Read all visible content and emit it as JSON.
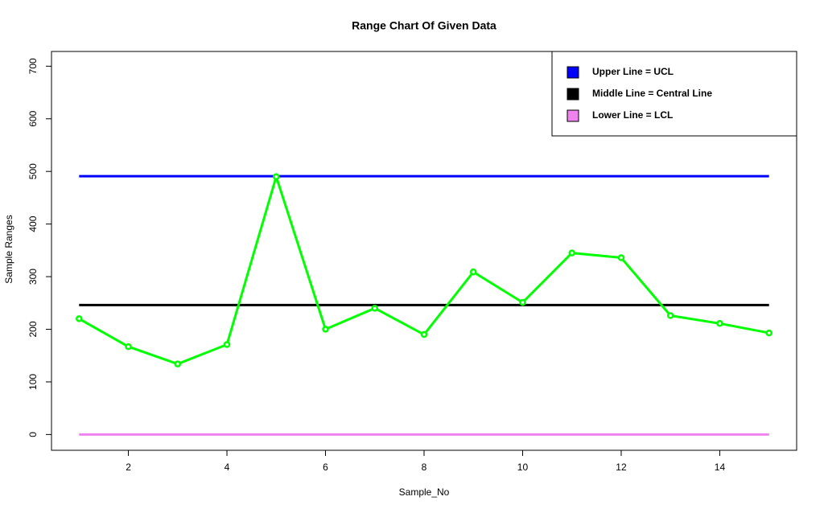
{
  "chart_data": {
    "type": "line",
    "title": "Range Chart Of Given Data",
    "x_label": "Sample_No",
    "y_label": "Sample Ranges",
    "x": [
      1,
      2,
      3,
      4,
      5,
      6,
      7,
      8,
      9,
      10,
      11,
      12,
      13,
      14,
      15
    ],
    "series": [
      {
        "color": "#00ff00",
        "values": [
          220,
          167,
          134,
          171,
          490,
          200,
          240,
          190,
          309,
          251,
          345,
          336,
          226,
          211,
          193
        ]
      }
    ],
    "reference_lines": [
      {
        "name": "Upper Line = UCL",
        "color": "#0000ff",
        "value": 491
      },
      {
        "name": "Middle Line = Central Line",
        "color": "#000000",
        "value": 246
      },
      {
        "name": "Lower Line = LCL",
        "color": "#ee82ee",
        "value": 0
      }
    ],
    "xlim": [
      0.44,
      15.56
    ],
    "xticks": [
      2,
      4,
      6,
      8,
      10,
      12,
      14
    ],
    "ylim": [
      -30,
      728
    ],
    "yticks": [
      0,
      100,
      200,
      300,
      400,
      500,
      600,
      700
    ],
    "legend": "top-right"
  }
}
